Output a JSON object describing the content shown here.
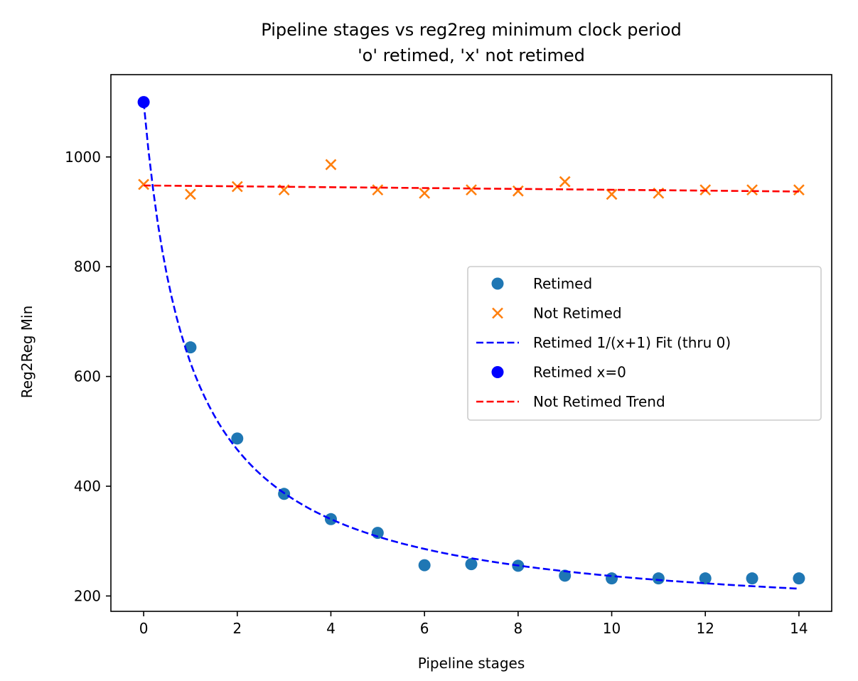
{
  "chart_data": {
    "type": "scatter",
    "title": "Pipeline stages vs reg2reg minimum clock period",
    "subtitle": "'o' retimed, 'x' not retimed",
    "xlabel": "Pipeline stages",
    "ylabel": "Reg2Reg Min",
    "xlim": [
      -0.7,
      14.7
    ],
    "ylim": [
      172,
      1150
    ],
    "xticks": [
      0,
      2,
      4,
      6,
      8,
      10,
      12,
      14
    ],
    "yticks": [
      200,
      400,
      600,
      800,
      1000
    ],
    "grid": false,
    "legend_position": "center-right",
    "series": [
      {
        "name": "Retimed",
        "kind": "scatter",
        "marker": "o",
        "color": "#1f77b4",
        "x": [
          1,
          2,
          3,
          4,
          5,
          6,
          7,
          8,
          9,
          10,
          11,
          12,
          13,
          14
        ],
        "y": [
          653,
          487,
          386,
          340,
          315,
          256,
          258,
          255,
          237,
          232,
          232,
          232,
          232,
          232
        ]
      },
      {
        "name": "Not Retimed",
        "kind": "scatter",
        "marker": "x",
        "color": "#ff7f0e",
        "x": [
          0,
          1,
          2,
          3,
          4,
          5,
          6,
          7,
          8,
          9,
          10,
          11,
          12,
          13,
          14
        ],
        "y": [
          950,
          932,
          946,
          940,
          986,
          940,
          934,
          940,
          938,
          955,
          932,
          934,
          940,
          940,
          940
        ]
      },
      {
        "name": "Retimed 1/(x+1) Fit (thru 0)",
        "kind": "line",
        "style": "dashed",
        "color": "#0000ff",
        "function": "a/(x+1)+b",
        "params": {
          "a": 950,
          "b": 150
        },
        "domain": [
          0,
          14
        ]
      },
      {
        "name": "Retimed x=0",
        "kind": "scatter",
        "marker": "o",
        "color": "#0000ff",
        "x": [
          0
        ],
        "y": [
          1100
        ]
      },
      {
        "name": "Not Retimed Trend",
        "kind": "line",
        "style": "dashed",
        "color": "#ff0000",
        "x": [
          0,
          14
        ],
        "y": [
          948,
          937
        ]
      }
    ]
  }
}
